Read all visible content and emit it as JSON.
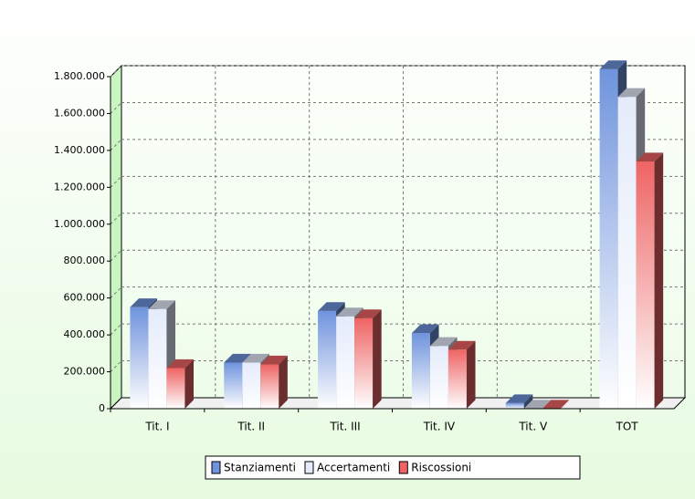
{
  "chart_data": {
    "type": "bar3d",
    "categories": [
      "Tit. I",
      "Tit. II",
      "Tit. III",
      "Tit. IV",
      "Tit. V",
      "TOT"
    ],
    "series": [
      {
        "name": "Stanziamenti",
        "color": "#6f93dd",
        "values": [
          550000,
          250000,
          530000,
          410000,
          30000,
          1840000
        ]
      },
      {
        "name": "Accertamenti",
        "color": "#e4ebfb",
        "values": [
          540000,
          250000,
          500000,
          340000,
          0,
          1690000
        ]
      },
      {
        "name": "Riscossioni",
        "color": "#ee6464",
        "values": [
          220000,
          240000,
          490000,
          320000,
          0,
          1340000
        ]
      }
    ],
    "ylim": [
      0,
      1800000
    ],
    "yticks": [
      0,
      {
        "value": 200000,
        "label": "200.000"
      },
      {
        "value": 400000,
        "label": "400.000"
      },
      {
        "value": 600000,
        "label": "600.000"
      },
      {
        "value": 800000,
        "label": "800.000"
      },
      {
        "value": 1000000,
        "label": "1.000.000"
      },
      {
        "value": 1200000,
        "label": "1.200.000"
      },
      {
        "value": 1400000,
        "label": "1.400.000"
      },
      {
        "value": 1600000,
        "label": "1.600.000"
      },
      {
        "value": 1800000,
        "label": "1.800.000"
      }
    ],
    "grid": true,
    "legend": "bottom"
  }
}
